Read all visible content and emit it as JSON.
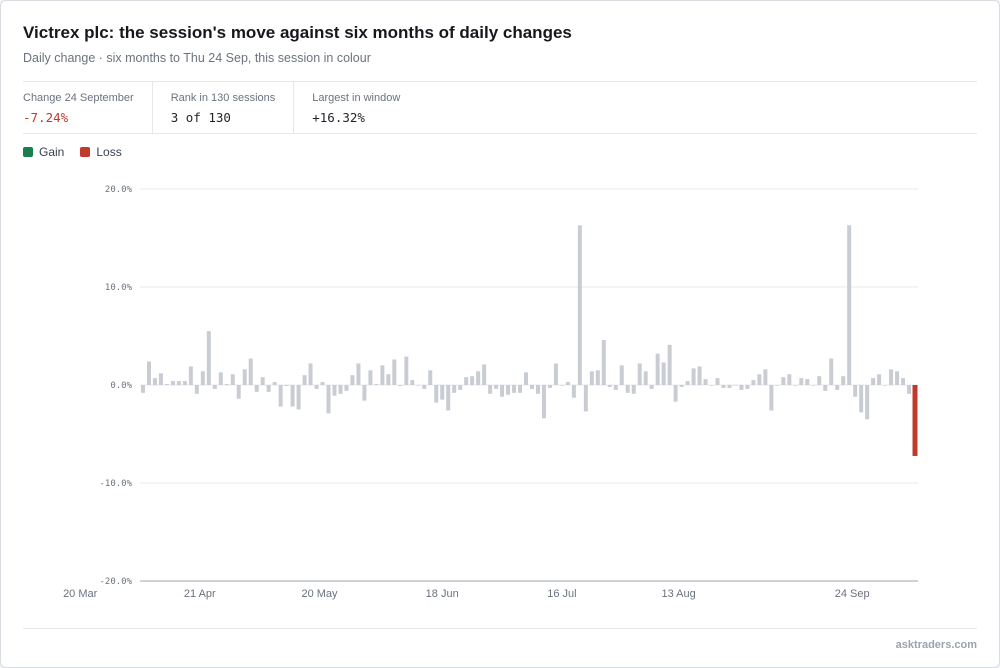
{
  "header": {
    "title": "Victrex plc: the session's move against six months of daily changes",
    "subtitle": "Daily change · six months to Thu 24 Sep, this session in colour"
  },
  "stats": [
    {
      "label": "Change 24 September",
      "value": "-7.24%"
    },
    {
      "label": "Rank in 130 sessions",
      "value": "3 of 130"
    },
    {
      "label": "Largest in window",
      "value": "+16.32%"
    }
  ],
  "legend": [
    {
      "label": "Gain",
      "color": "#1a7f4e"
    },
    {
      "label": "Loss",
      "color": "#c0392b"
    }
  ],
  "source": "asktraders.com",
  "chart_data": {
    "type": "bar",
    "ylim": [
      -20,
      20
    ],
    "yticks": [
      20,
      10,
      0,
      -10,
      -20
    ],
    "ytick_labels": [
      "20.0%",
      "10.0%",
      "0.0%",
      "-10.0%",
      "-20.0%"
    ],
    "xtick_labels": [
      {
        "label": "20 Mar",
        "index": -10.5
      },
      {
        "label": "21 Apr",
        "index": 9.5
      },
      {
        "label": "20 May",
        "index": 29.5
      },
      {
        "label": "18 Jun",
        "index": 50
      },
      {
        "label": "16 Jul",
        "index": 70
      },
      {
        "label": "13 Aug",
        "index": 89.5
      },
      {
        "label": "24 Sep",
        "index": 118.5
      }
    ],
    "neutral_color": "#c9cdd3",
    "highlight_index": 129,
    "highlight_color": "#c0392b",
    "values": [
      -0.8,
      2.4,
      0.7,
      1.2,
      0.1,
      0.4,
      0.4,
      0.4,
      1.9,
      -0.9,
      1.4,
      5.5,
      -0.4,
      1.3,
      0.1,
      1.1,
      -1.4,
      1.6,
      2.7,
      -0.7,
      0.8,
      -0.7,
      0.3,
      -2.2,
      -0.1,
      -2.2,
      -2.5,
      1.0,
      2.2,
      -0.4,
      0.3,
      -2.9,
      -1.1,
      -0.9,
      -0.6,
      1.0,
      2.2,
      -1.6,
      1.5,
      0.1,
      2.0,
      1.1,
      2.6,
      -0.1,
      2.9,
      0.5,
      0.0,
      -0.4,
      1.5,
      -1.8,
      -1.5,
      -2.6,
      -0.8,
      -0.5,
      0.8,
      0.9,
      1.4,
      2.1,
      -0.9,
      -0.4,
      -1.2,
      -1.0,
      -0.8,
      -0.8,
      1.3,
      -0.4,
      -0.9,
      -3.4,
      -0.3,
      2.2,
      0.0,
      0.3,
      -1.3,
      16.3,
      -2.7,
      1.4,
      1.5,
      4.6,
      -0.2,
      -0.5,
      2.0,
      -0.8,
      -0.9,
      2.2,
      1.4,
      -0.4,
      3.2,
      2.3,
      4.1,
      -1.7,
      -0.2,
      0.4,
      1.7,
      1.9,
      0.6,
      0.0,
      0.7,
      -0.3,
      -0.3,
      0.0,
      -0.5,
      -0.4,
      0.5,
      1.1,
      1.6,
      -2.6,
      0.0,
      0.8,
      1.1,
      0.0,
      0.7,
      0.6,
      0.0,
      0.9,
      -0.6,
      2.7,
      -0.5,
      0.9,
      16.3,
      -1.2,
      -2.8,
      -3.5,
      0.7,
      1.1,
      0.0,
      1.6,
      1.4,
      0.7,
      -0.9,
      -7.24
    ]
  }
}
